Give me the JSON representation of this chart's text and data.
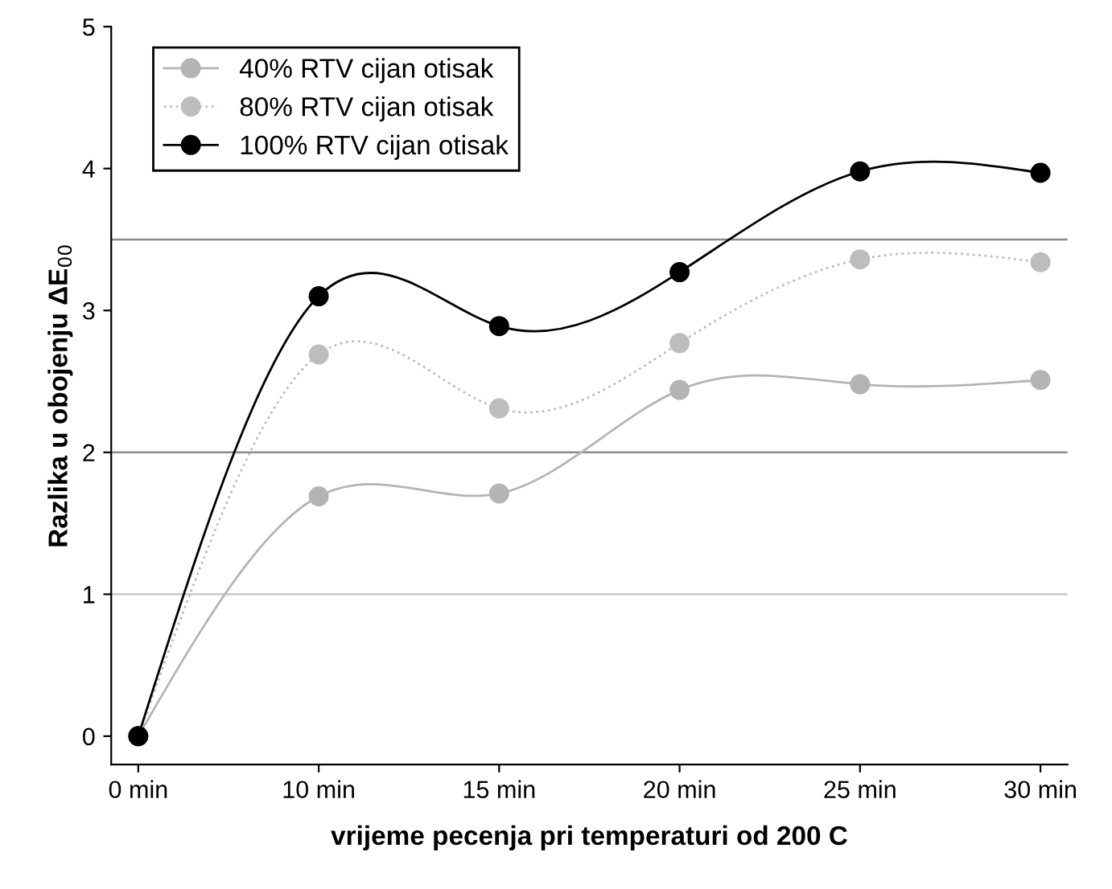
{
  "chart_data": {
    "type": "line",
    "xlabel": "vrijeme pecenja pri temperaturi od 200 C",
    "ylabel": "Razlika u obojenju ΔE$_{00}$",
    "categories": [
      "0 min",
      "10 min",
      "15 min",
      "20 min",
      "25 min",
      "30 min"
    ],
    "series": [
      {
        "name": "40% RTV cijan otisak",
        "color": "#b4b4b4",
        "line_style": "solid",
        "values": [
          0,
          1.69,
          1.71,
          2.44,
          2.48,
          2.51
        ]
      },
      {
        "name": "80% RTV cijan otisak",
        "color": "#bdbdbd",
        "line_style": "dotted",
        "values": [
          0,
          2.69,
          2.31,
          2.77,
          3.36,
          3.34
        ]
      },
      {
        "name": "100% RTV cijan otisak",
        "color": "#000000",
        "line_style": "solid",
        "values": [
          0,
          3.1,
          2.89,
          3.27,
          3.98,
          3.97
        ]
      }
    ],
    "ylim": [
      -0.2,
      5
    ],
    "yticks": [
      0,
      1,
      2,
      3,
      4,
      5
    ],
    "ref_lines": [
      {
        "axis": "y",
        "value": 1,
        "color": "#c8c8c8"
      },
      {
        "axis": "y",
        "value": 2,
        "color": "#8c8c8c"
      },
      {
        "axis": "y",
        "value": 3.5,
        "color": "#8c8c8c"
      }
    ],
    "marker": "circle",
    "legend": "top left",
    "grid": false
  }
}
